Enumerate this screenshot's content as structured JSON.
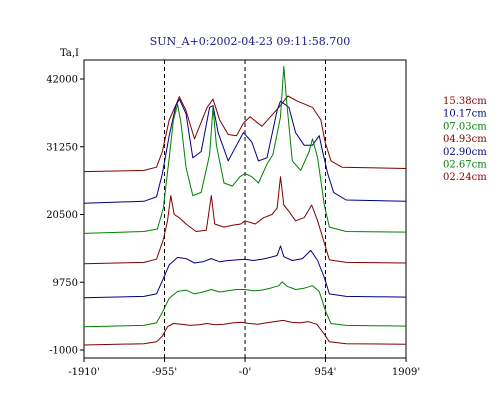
{
  "chart_data": {
    "type": "line",
    "title": "SUN_A+0:2002-04-23 09:11:58.700",
    "ylabel": "Ta,I",
    "xlabel": "",
    "xlim": [
      -1910,
      1909
    ],
    "ylim": [
      -1000,
      42000
    ],
    "x_ticks": [
      {
        "value": -1910,
        "label": "-1910'"
      },
      {
        "value": -955,
        "label": "-955'"
      },
      {
        "value": 0,
        "label": "-0'"
      },
      {
        "value": 954,
        "label": "954'"
      },
      {
        "value": 1909,
        "label": "1909'"
      }
    ],
    "y_ticks": [
      {
        "value": 42000,
        "label": "42000"
      },
      {
        "value": 31250,
        "label": "31250"
      },
      {
        "value": 20500,
        "label": "20500"
      },
      {
        "value": 9750,
        "label": "9750"
      },
      {
        "value": -1000,
        "label": "-1000"
      }
    ],
    "vertical_reference_lines": [
      -955,
      0,
      954
    ],
    "grid": false,
    "legend_position": "right",
    "series": [
      {
        "name": "15.38cm",
        "color": "#800000",
        "points": [
          [
            -1910,
            27300
          ],
          [
            -1200,
            27500
          ],
          [
            -1050,
            28000
          ],
          [
            -980,
            30500
          ],
          [
            -900,
            35500
          ],
          [
            -800,
            38500
          ],
          [
            -780,
            39200
          ],
          [
            -700,
            37000
          ],
          [
            -600,
            32500
          ],
          [
            -450,
            37500
          ],
          [
            -380,
            38800
          ],
          [
            -300,
            35500
          ],
          [
            -200,
            33200
          ],
          [
            -100,
            33000
          ],
          [
            -20,
            35000
          ],
          [
            60,
            36000
          ],
          [
            200,
            34500
          ],
          [
            400,
            37500
          ],
          [
            510,
            39300
          ],
          [
            620,
            38500
          ],
          [
            800,
            37500
          ],
          [
            900,
            35500
          ],
          [
            950,
            32000
          ],
          [
            1020,
            29000
          ],
          [
            1150,
            28000
          ],
          [
            1909,
            27800
          ]
        ]
      },
      {
        "name": "10.17cm",
        "color": "#000080",
        "points": [
          [
            -1910,
            22300
          ],
          [
            -1200,
            22600
          ],
          [
            -1050,
            23300
          ],
          [
            -980,
            27000
          ],
          [
            -900,
            33000
          ],
          [
            -820,
            37800
          ],
          [
            -780,
            38800
          ],
          [
            -700,
            36500
          ],
          [
            -620,
            29500
          ],
          [
            -520,
            30500
          ],
          [
            -420,
            37500
          ],
          [
            -380,
            37800
          ],
          [
            -320,
            33500
          ],
          [
            -200,
            29000
          ],
          [
            -120,
            31000
          ],
          [
            -20,
            33500
          ],
          [
            80,
            32000
          ],
          [
            160,
            29000
          ],
          [
            260,
            29500
          ],
          [
            380,
            37000
          ],
          [
            420,
            38500
          ],
          [
            520,
            37500
          ],
          [
            600,
            33500
          ],
          [
            700,
            31500
          ],
          [
            800,
            31500
          ],
          [
            880,
            33000
          ],
          [
            920,
            30500
          ],
          [
            980,
            27000
          ],
          [
            1050,
            24000
          ],
          [
            1200,
            22800
          ],
          [
            1909,
            22600
          ]
        ]
      },
      {
        "name": "07.03cm",
        "color": "#008000",
        "points": [
          [
            -1910,
            17500
          ],
          [
            -1200,
            17800
          ],
          [
            -1040,
            18200
          ],
          [
            -970,
            21500
          ],
          [
            -900,
            29500
          ],
          [
            -850,
            35500
          ],
          [
            -800,
            38000
          ],
          [
            -760,
            35000
          ],
          [
            -700,
            28000
          ],
          [
            -620,
            23500
          ],
          [
            -520,
            24000
          ],
          [
            -420,
            30000
          ],
          [
            -380,
            37500
          ],
          [
            -340,
            31500
          ],
          [
            -250,
            25500
          ],
          [
            -150,
            25000
          ],
          [
            -60,
            26500
          ],
          [
            0,
            27000
          ],
          [
            80,
            26500
          ],
          [
            160,
            25500
          ],
          [
            260,
            28500
          ],
          [
            330,
            30000
          ],
          [
            420,
            36000
          ],
          [
            460,
            44000
          ],
          [
            500,
            37500
          ],
          [
            560,
            29000
          ],
          [
            660,
            27500
          ],
          [
            760,
            30500
          ],
          [
            800,
            32500
          ],
          [
            860,
            29500
          ],
          [
            940,
            22000
          ],
          [
            1000,
            18500
          ],
          [
            1200,
            17800
          ],
          [
            1909,
            17700
          ]
        ]
      },
      {
        "name": "04.93cm",
        "color": "#800000",
        "points": [
          [
            -1910,
            12700
          ],
          [
            -1200,
            12900
          ],
          [
            -1050,
            13400
          ],
          [
            -970,
            16500
          ],
          [
            -920,
            19500
          ],
          [
            -880,
            23500
          ],
          [
            -840,
            20500
          ],
          [
            -780,
            20000
          ],
          [
            -700,
            19000
          ],
          [
            -580,
            17800
          ],
          [
            -460,
            18000
          ],
          [
            -400,
            23500
          ],
          [
            -360,
            19000
          ],
          [
            -250,
            18500
          ],
          [
            -150,
            18800
          ],
          [
            -50,
            19000
          ],
          [
            0,
            19500
          ],
          [
            120,
            19000
          ],
          [
            220,
            20000
          ],
          [
            320,
            20500
          ],
          [
            380,
            21500
          ],
          [
            420,
            26500
          ],
          [
            460,
            22000
          ],
          [
            520,
            21000
          ],
          [
            600,
            19500
          ],
          [
            700,
            20000
          ],
          [
            790,
            22000
          ],
          [
            860,
            19500
          ],
          [
            940,
            16000
          ],
          [
            1000,
            13300
          ],
          [
            1200,
            12900
          ],
          [
            1909,
            12800
          ]
        ]
      },
      {
        "name": "02.90cm",
        "color": "#000080",
        "points": [
          [
            -1910,
            7300
          ],
          [
            -1200,
            7500
          ],
          [
            -1050,
            7900
          ],
          [
            -980,
            10000
          ],
          [
            -900,
            12500
          ],
          [
            -800,
            13700
          ],
          [
            -700,
            13500
          ],
          [
            -600,
            12800
          ],
          [
            -500,
            13000
          ],
          [
            -400,
            13500
          ],
          [
            -300,
            13000
          ],
          [
            -200,
            13200
          ],
          [
            -100,
            13300
          ],
          [
            0,
            13400
          ],
          [
            100,
            13200
          ],
          [
            200,
            13400
          ],
          [
            300,
            13700
          ],
          [
            380,
            14000
          ],
          [
            420,
            15500
          ],
          [
            460,
            13800
          ],
          [
            560,
            13200
          ],
          [
            680,
            13500
          ],
          [
            780,
            14800
          ],
          [
            860,
            13200
          ],
          [
            940,
            10500
          ],
          [
            1000,
            7900
          ],
          [
            1200,
            7500
          ],
          [
            1909,
            7400
          ]
        ]
      },
      {
        "name": "02.67cm",
        "color": "#008000",
        "points": [
          [
            -1910,
            2700
          ],
          [
            -1200,
            2900
          ],
          [
            -1050,
            3300
          ],
          [
            -980,
            5000
          ],
          [
            -900,
            7200
          ],
          [
            -800,
            8300
          ],
          [
            -700,
            8500
          ],
          [
            -600,
            7900
          ],
          [
            -500,
            8200
          ],
          [
            -400,
            8600
          ],
          [
            -300,
            8200
          ],
          [
            -200,
            8400
          ],
          [
            -100,
            8600
          ],
          [
            0,
            8600
          ],
          [
            100,
            8400
          ],
          [
            200,
            8500
          ],
          [
            300,
            8800
          ],
          [
            400,
            9200
          ],
          [
            440,
            9800
          ],
          [
            500,
            9100
          ],
          [
            600,
            8600
          ],
          [
            700,
            8800
          ],
          [
            800,
            9200
          ],
          [
            880,
            8300
          ],
          [
            960,
            5000
          ],
          [
            1020,
            3200
          ],
          [
            1200,
            2900
          ],
          [
            1909,
            2800
          ]
        ]
      },
      {
        "name": "02.24cm",
        "color": "#800000",
        "points": [
          [
            -1910,
            -200
          ],
          [
            -1200,
            0
          ],
          [
            -1050,
            300
          ],
          [
            -980,
            1200
          ],
          [
            -920,
            2700
          ],
          [
            -850,
            3200
          ],
          [
            -750,
            3100
          ],
          [
            -650,
            2900
          ],
          [
            -550,
            3000
          ],
          [
            -450,
            3200
          ],
          [
            -350,
            3000
          ],
          [
            -250,
            3100
          ],
          [
            -150,
            3300
          ],
          [
            -50,
            3400
          ],
          [
            50,
            3200
          ],
          [
            150,
            3100
          ],
          [
            250,
            3300
          ],
          [
            350,
            3500
          ],
          [
            450,
            3700
          ],
          [
            550,
            3400
          ],
          [
            650,
            3300
          ],
          [
            750,
            3500
          ],
          [
            850,
            3100
          ],
          [
            940,
            1500
          ],
          [
            1000,
            300
          ],
          [
            1200,
            0
          ],
          [
            1909,
            -100
          ]
        ]
      }
    ]
  }
}
